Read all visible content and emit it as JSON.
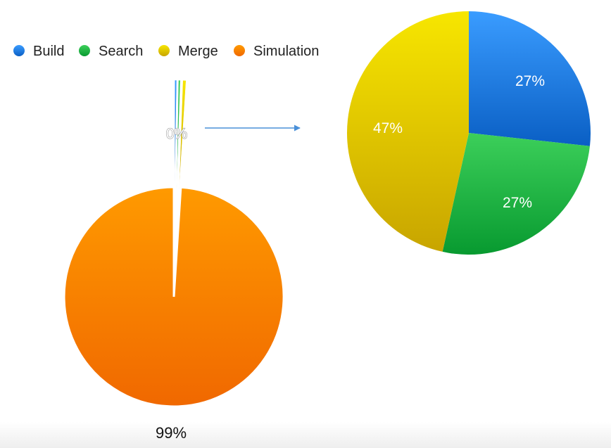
{
  "chart_data": [
    {
      "type": "pie",
      "title": "",
      "legend": {
        "placement": "top-left",
        "entries": [
          {
            "name": "Build",
            "color": "#1a7ee6"
          },
          {
            "name": "Search",
            "color": "#14b03c"
          },
          {
            "name": "Merge",
            "color": "#e1c800"
          },
          {
            "name": "Simulation",
            "color": "#f57a00"
          }
        ]
      },
      "categories": [
        "Build",
        "Search",
        "Merge",
        "Simulation"
      ],
      "values": [
        0.27,
        0.27,
        0.47,
        99.0
      ],
      "slice_labels": [
        "",
        "",
        "0%",
        "99%"
      ],
      "exploded": [
        "Build",
        "Search",
        "Merge"
      ]
    },
    {
      "type": "pie",
      "title": "",
      "categories": [
        "Build",
        "Search",
        "Merge"
      ],
      "values": [
        27,
        27,
        47
      ],
      "slice_labels": [
        "27%",
        "27%",
        "47%"
      ]
    }
  ],
  "colors": {
    "Build": "#1a7ee6",
    "Search": "#14b03c",
    "Merge": "#e1c800",
    "Simulation": "#f57a00",
    "arrow": "#4a90d9"
  }
}
